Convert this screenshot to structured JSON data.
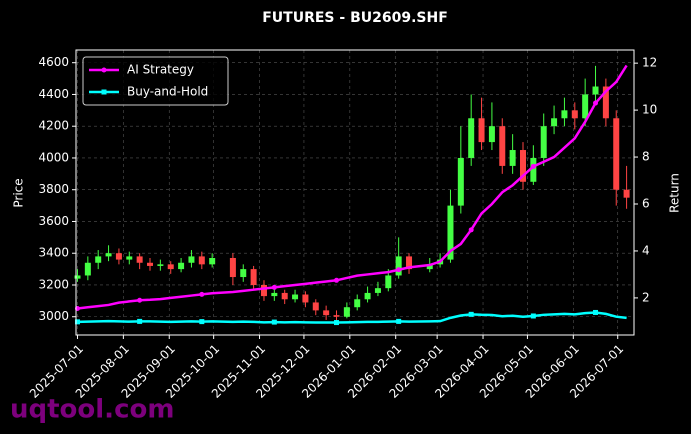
{
  "chart_data": {
    "type": "candlestick",
    "title": "FUTURES - BU2609.SHF",
    "y_label": "Price",
    "y2_label": "Return",
    "watermark": "uqtool.com",
    "x": [
      "2025-07-01",
      "2025-07-08",
      "2025-07-15",
      "2025-07-22",
      "2025-07-29",
      "2025-08-05",
      "2025-08-12",
      "2025-08-19",
      "2025-08-26",
      "2025-09-02",
      "2025-09-09",
      "2025-09-16",
      "2025-09-23",
      "2025-09-30",
      "2025-10-14",
      "2025-10-21",
      "2025-10-28",
      "2025-11-04",
      "2025-11-11",
      "2025-11-18",
      "2025-11-25",
      "2025-12-02",
      "2025-12-09",
      "2025-12-16",
      "2025-12-23",
      "2025-12-30",
      "2026-01-06",
      "2026-01-13",
      "2026-01-20",
      "2026-01-27",
      "2026-02-03",
      "2026-02-10",
      "2026-02-24",
      "2026-03-03",
      "2026-03-10",
      "2026-03-17",
      "2026-03-24",
      "2026-03-31",
      "2026-04-07",
      "2026-04-14",
      "2026-04-21",
      "2026-04-28",
      "2026-05-05",
      "2026-05-12",
      "2026-05-19",
      "2026-05-26",
      "2026-06-02",
      "2026-06-09",
      "2026-06-16",
      "2026-06-23",
      "2026-06-30",
      "2026-07-07"
    ],
    "open": [
      3240,
      3260,
      3340,
      3380,
      3400,
      3360,
      3380,
      3340,
      3320,
      3330,
      3300,
      3340,
      3380,
      3330,
      3370,
      3250,
      3300,
      3200,
      3130,
      3150,
      3110,
      3140,
      3090,
      3040,
      3010,
      3000,
      3060,
      3110,
      3150,
      3180,
      3260,
      3380,
      3300,
      3330,
      3360,
      3700,
      4000,
      4250,
      4100,
      4200,
      3950,
      4050,
      3850,
      4000,
      4200,
      4250,
      4300,
      4250,
      4400,
      4450,
      4250,
      3800
    ],
    "high": [
      3300,
      3380,
      3420,
      3450,
      3430,
      3410,
      3400,
      3370,
      3360,
      3350,
      3370,
      3420,
      3410,
      3400,
      3400,
      3330,
      3320,
      3230,
      3190,
      3170,
      3170,
      3160,
      3110,
      3070,
      3040,
      3090,
      3140,
      3190,
      3220,
      3300,
      3500,
      3400,
      3370,
      3400,
      3800,
      4200,
      4400,
      4380,
      4350,
      4250,
      4150,
      4100,
      4080,
      4280,
      4330,
      4380,
      4350,
      4500,
      4580,
      4500,
      4300,
      3950
    ],
    "low": [
      3220,
      3230,
      3300,
      3350,
      3330,
      3330,
      3300,
      3290,
      3290,
      3270,
      3280,
      3310,
      3300,
      3310,
      3200,
      3220,
      3170,
      3100,
      3100,
      3080,
      3090,
      3060,
      3010,
      2980,
      2970,
      2990,
      3040,
      3090,
      3130,
      3160,
      3240,
      3270,
      3280,
      3310,
      3340,
      3650,
      3950,
      4050,
      4050,
      3900,
      3900,
      3800,
      3830,
      3950,
      4150,
      4200,
      4180,
      4200,
      4350,
      4200,
      3700,
      3680
    ],
    "close": [
      3260,
      3340,
      3380,
      3400,
      3360,
      3380,
      3340,
      3320,
      3330,
      3300,
      3340,
      3380,
      3330,
      3370,
      3250,
      3300,
      3200,
      3130,
      3150,
      3110,
      3140,
      3090,
      3040,
      3010,
      3000,
      3060,
      3110,
      3150,
      3180,
      3260,
      3380,
      3300,
      3330,
      3360,
      3700,
      4000,
      4250,
      4100,
      4200,
      3950,
      4050,
      3850,
      4000,
      4200,
      4250,
      4300,
      4250,
      4400,
      4450,
      4250,
      3800,
      3750
    ],
    "up_color": "#44ff44",
    "down_color": "#ff4444",
    "series": [
      {
        "name": "AI Strategy",
        "color": "#ff00ff",
        "axis": "y2",
        "values": [
          1.55,
          1.6,
          1.65,
          1.7,
          1.8,
          1.85,
          1.9,
          1.92,
          1.95,
          2.0,
          2.05,
          2.1,
          2.15,
          2.2,
          2.25,
          2.3,
          2.35,
          2.4,
          2.45,
          2.5,
          2.55,
          2.6,
          2.65,
          2.7,
          2.75,
          2.85,
          2.95,
          3.0,
          3.05,
          3.1,
          3.2,
          3.3,
          3.4,
          3.55,
          4.0,
          4.3,
          4.9,
          5.6,
          6.0,
          6.5,
          6.8,
          7.2,
          7.6,
          7.8,
          8.0,
          8.4,
          8.8,
          9.5,
          10.3,
          10.8,
          11.2,
          11.9
        ]
      },
      {
        "name": "Buy-and-Hold",
        "color": "#00ffff",
        "axis": "y2",
        "values": [
          0.98,
          0.99,
          1.0,
          1.01,
          1.0,
          0.99,
          1.0,
          1.0,
          0.99,
          0.98,
          0.99,
          1.0,
          0.99,
          1.0,
          0.98,
          0.99,
          0.98,
          0.96,
          0.97,
          0.96,
          0.97,
          0.96,
          0.95,
          0.95,
          0.95,
          0.96,
          0.97,
          0.98,
          0.98,
          0.99,
          1.0,
          0.99,
          1.0,
          1.01,
          1.15,
          1.25,
          1.3,
          1.28,
          1.27,
          1.22,
          1.24,
          1.2,
          1.23,
          1.28,
          1.3,
          1.32,
          1.3,
          1.35,
          1.38,
          1.32,
          1.2,
          1.15
        ]
      }
    ],
    "xlim": [
      "2025-06-30",
      "2026-07-12"
    ],
    "xticks": [
      "2025-07-01",
      "2025-08-01",
      "2025-09-01",
      "2025-10-01",
      "2025-11-01",
      "2025-12-01",
      "2026-01-01",
      "2026-02-01",
      "2026-03-01",
      "2026-04-01",
      "2026-05-01",
      "2026-06-01",
      "2026-07-01"
    ],
    "ylim": [
      2885,
      4680
    ],
    "yticks": [
      3000,
      3200,
      3400,
      3600,
      3800,
      4000,
      4200,
      4400,
      4600
    ],
    "y2lim": [
      0.42,
      12.56
    ],
    "y2ticks": [
      2,
      4,
      6,
      8,
      10,
      12
    ],
    "grid": true,
    "legend": "upper left"
  }
}
